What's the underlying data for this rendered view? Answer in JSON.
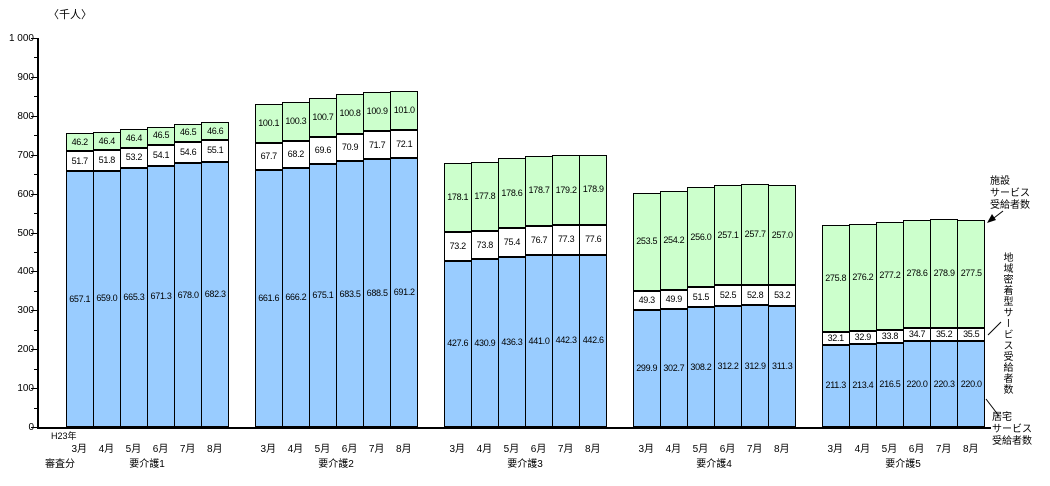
{
  "unit_label": "〈千人〉",
  "x_axis": {
    "era_label": "H23年",
    "note_label": "審査分",
    "months": [
      "3月",
      "4月",
      "5月",
      "6月",
      "7月",
      "8月"
    ]
  },
  "y_axis": {
    "labels": [
      "0",
      "100",
      "200",
      "300",
      "400",
      "500",
      "600",
      "700",
      "800",
      "900",
      "1 000"
    ]
  },
  "annotations": {
    "facility_label_lines": [
      "施設",
      "サービス",
      "受給者数"
    ],
    "community_label_vertical": "地域密着型サービス受給者数",
    "home_label_lines": [
      "居宅",
      "サービス",
      "受給者数"
    ]
  },
  "colors": {
    "home": "#99CCFF",
    "community": "#FFFFFF",
    "facility": "#CCFFCC",
    "border": "#000000"
  },
  "chart_data": {
    "type": "bar",
    "stacked": true,
    "unit": "千人",
    "ylim": [
      0,
      1000
    ],
    "y_major_step": 100,
    "y_minor_step": 50,
    "categories_months": [
      "3月",
      "4月",
      "5月",
      "6月",
      "7月",
      "8月"
    ],
    "groups": [
      "要介護1",
      "要介護2",
      "要介護3",
      "要介護4",
      "要介護5"
    ],
    "series": [
      {
        "name": "居宅サービス受給者数",
        "key": "home",
        "values": [
          [
            657.1,
            659.0,
            665.3,
            671.3,
            678.0,
            682.3
          ],
          [
            661.6,
            666.2,
            675.1,
            683.5,
            688.5,
            691.2
          ],
          [
            427.6,
            430.9,
            436.3,
            441.0,
            442.3,
            442.6
          ],
          [
            299.9,
            302.7,
            308.2,
            312.2,
            312.9,
            311.3
          ],
          [
            211.3,
            213.4,
            216.5,
            220.0,
            220.3,
            220.0
          ]
        ]
      },
      {
        "name": "地域密着型サービス受給者数",
        "key": "community",
        "values": [
          [
            51.7,
            51.8,
            53.2,
            54.1,
            54.6,
            55.1
          ],
          [
            67.7,
            68.2,
            69.6,
            70.9,
            71.7,
            72.1
          ],
          [
            73.2,
            73.8,
            75.4,
            76.7,
            77.3,
            77.6
          ],
          [
            49.3,
            49.9,
            51.5,
            52.5,
            52.8,
            53.2
          ],
          [
            32.1,
            32.9,
            33.8,
            34.7,
            35.2,
            35.5
          ]
        ]
      },
      {
        "name": "施設サービス受給者数",
        "key": "facility",
        "values": [
          [
            46.2,
            46.4,
            46.4,
            46.5,
            46.5,
            46.6
          ],
          [
            100.1,
            100.3,
            100.7,
            100.8,
            100.9,
            101.0
          ],
          [
            178.1,
            177.8,
            178.6,
            178.7,
            179.2,
            178.9
          ],
          [
            253.5,
            254.2,
            256.0,
            257.1,
            257.7,
            257.0
          ],
          [
            275.8,
            276.2,
            277.2,
            278.6,
            278.9,
            277.5
          ]
        ]
      }
    ]
  }
}
